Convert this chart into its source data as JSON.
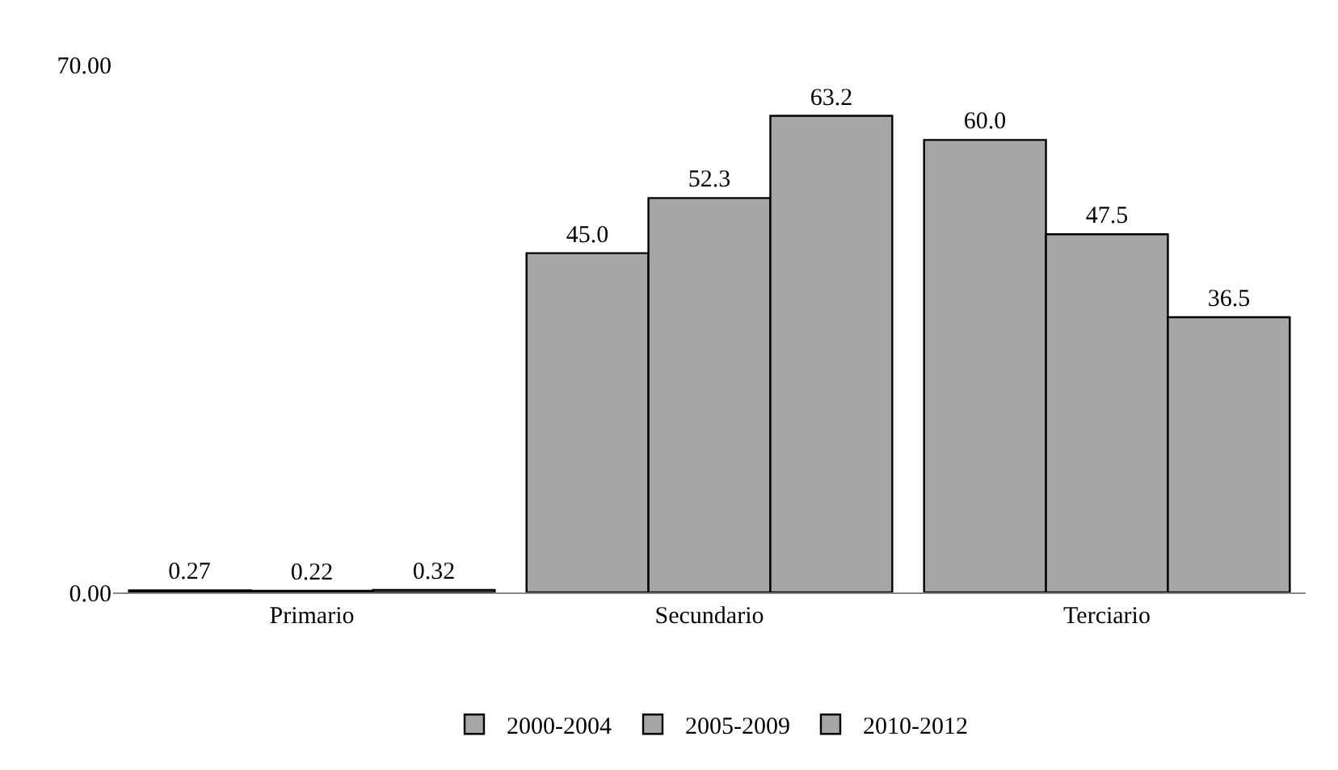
{
  "chart_data": {
    "type": "bar",
    "categories": [
      "Primario",
      "Secundario",
      "Terciario"
    ],
    "series": [
      {
        "name": "2000-2004",
        "color": "#a6a6a6",
        "values": [
          0.27,
          45.0,
          60.0
        ],
        "value_labels": [
          "0.27",
          "45.0",
          "60.0"
        ]
      },
      {
        "name": "2005-2009",
        "color": "#a6a6a6",
        "values": [
          0.22,
          52.3,
          47.5
        ],
        "value_labels": [
          "0.22",
          "52.3",
          "47.5"
        ]
      },
      {
        "name": "2010-2012",
        "color": "#a6a6a6",
        "values": [
          0.32,
          63.2,
          36.5
        ],
        "value_labels": [
          "0.32",
          "63.2",
          "36.5"
        ]
      }
    ],
    "ylim": [
      0,
      70
    ],
    "yticks": [
      {
        "value": 0,
        "label": "0.00"
      },
      {
        "value": 70,
        "label": "70.00"
      }
    ],
    "legend": "bottom"
  }
}
